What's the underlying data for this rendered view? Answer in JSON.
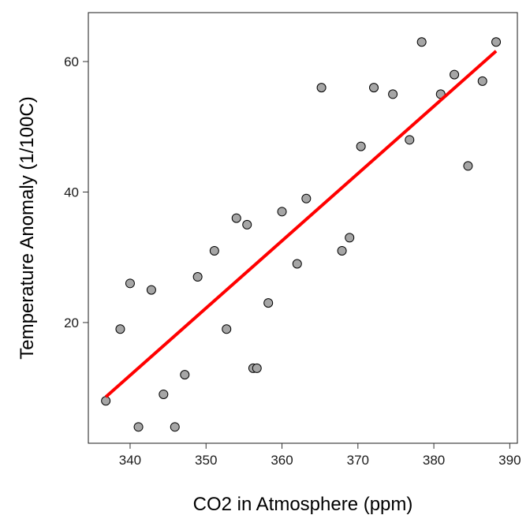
{
  "chart_data": {
    "type": "scatter",
    "title": "",
    "xlabel": "CO2 in Atmosphere (ppm)",
    "ylabel": "Temperature Anomaly (1/100C)",
    "xlim": [
      334.5,
      391
    ],
    "ylim": [
      1.5,
      67.5
    ],
    "xticks": [
      340,
      350,
      360,
      370,
      380,
      390
    ],
    "yticks": [
      20,
      40,
      60
    ],
    "grid": false,
    "legend": "none",
    "point_color": "#a6a6a6",
    "point_edge_color": "#000000",
    "fit_color": "#ff0000",
    "points": [
      {
        "x": 336.8,
        "y": 8
      },
      {
        "x": 338.7,
        "y": 19
      },
      {
        "x": 340.0,
        "y": 26
      },
      {
        "x": 341.1,
        "y": 4
      },
      {
        "x": 342.8,
        "y": 25
      },
      {
        "x": 344.4,
        "y": 9
      },
      {
        "x": 345.9,
        "y": 4
      },
      {
        "x": 347.2,
        "y": 12
      },
      {
        "x": 348.9,
        "y": 27
      },
      {
        "x": 351.1,
        "y": 31
      },
      {
        "x": 352.7,
        "y": 19
      },
      {
        "x": 354.0,
        "y": 36
      },
      {
        "x": 355.4,
        "y": 35
      },
      {
        "x": 356.2,
        "y": 13
      },
      {
        "x": 356.7,
        "y": 13
      },
      {
        "x": 358.2,
        "y": 23
      },
      {
        "x": 360.0,
        "y": 37
      },
      {
        "x": 362.0,
        "y": 29
      },
      {
        "x": 363.2,
        "y": 39
      },
      {
        "x": 365.2,
        "y": 56
      },
      {
        "x": 367.9,
        "y": 31
      },
      {
        "x": 368.9,
        "y": 33
      },
      {
        "x": 370.4,
        "y": 47
      },
      {
        "x": 372.1,
        "y": 56
      },
      {
        "x": 374.6,
        "y": 55
      },
      {
        "x": 376.8,
        "y": 48
      },
      {
        "x": 378.4,
        "y": 63
      },
      {
        "x": 380.9,
        "y": 55
      },
      {
        "x": 382.7,
        "y": 58
      },
      {
        "x": 384.5,
        "y": 44
      },
      {
        "x": 386.4,
        "y": 57
      },
      {
        "x": 388.2,
        "y": 63
      }
    ],
    "fit_line": {
      "x": [
        336.8,
        388.2
      ],
      "y": [
        8.6,
        61.6
      ]
    }
  }
}
